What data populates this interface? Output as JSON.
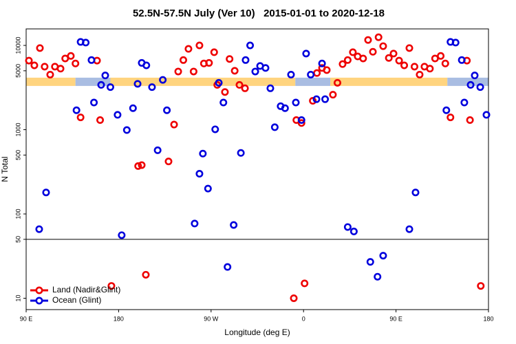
{
  "chart_data": {
    "type": "scatter",
    "title": "52.5N-57.5N July (Ver 10)   2015-01-01 to 2020-12-18",
    "xlabel": "Longitude (deg E)",
    "ylabel": "N Total",
    "xlim": [
      90,
      540
    ],
    "xticks": [
      {
        "value": 90,
        "label": "90 E"
      },
      {
        "value": 180,
        "label": "180"
      },
      {
        "value": 270,
        "label": "90 W"
      },
      {
        "value": 360,
        "label": "0"
      },
      {
        "value": 450,
        "label": "90 E"
      },
      {
        "value": 540,
        "label": "180"
      }
    ],
    "ylim": [
      7.33,
      15700
    ],
    "yscale": "log",
    "yticks": [
      10,
      50,
      100,
      500,
      1000,
      5000,
      10000
    ],
    "panel_split": 50,
    "legend": "lower left",
    "band": {
      "value": 3700,
      "segments": [
        {
          "from": 90,
          "to": 138,
          "color": "#ffd47f"
        },
        {
          "from": 138,
          "to": 172,
          "color": "#a9bde2"
        },
        {
          "from": 172,
          "to": 352,
          "color": "#ffd47f"
        },
        {
          "from": 352,
          "to": 386,
          "color": "#a9bde2"
        },
        {
          "from": 386,
          "to": 500,
          "color": "#ffd47f"
        },
        {
          "from": 500,
          "to": 540,
          "color": "#a9bde2"
        }
      ]
    },
    "series": [
      {
        "name": "Land (Nadir&Glint)",
        "color": "#ee0000",
        "x": [
          92.7,
          98,
          103.4,
          108,
          113.4,
          118,
          123.5,
          128,
          133.5,
          138,
          143,
          159,
          162,
          199,
          202.5,
          228.6,
          234,
          238,
          243,
          248,
          253,
          258.7,
          263,
          268,
          273,
          276,
          283.5,
          288,
          293,
          297.6,
          303,
          353,
          358,
          369,
          373,
          378,
          382.6,
          388.6,
          393,
          398,
          403,
          408,
          412.7,
          418,
          422.8,
          427.5,
          433,
          437.5,
          443,
          447.6,
          453,
          458,
          463,
          468,
          473,
          477.7,
          483,
          488,
          493.5,
          498,
          503,
          519,
          522,
          173,
          206.5,
          350.5,
          361,
          532.5
        ],
        "values": [
          6600,
          5800,
          9300,
          5600,
          4500,
          5600,
          5300,
          7000,
          7500,
          6100,
          1400,
          6600,
          1300,
          370,
          380,
          420,
          1150,
          4900,
          6700,
          9100,
          4900,
          10000,
          6100,
          6200,
          8300,
          3400,
          2800,
          6900,
          5000,
          3400,
          3100,
          1300,
          1200,
          2200,
          4700,
          5400,
          5100,
          2600,
          3600,
          6000,
          6700,
          8300,
          7400,
          7000,
          11600,
          8400,
          12500,
          9800,
          7100,
          8000,
          6600,
          5800,
          9300,
          5600,
          4500,
          5600,
          5300,
          7000,
          7500,
          6100,
          1400,
          6600,
          1300,
          14,
          19,
          10,
          15,
          14
        ]
      },
      {
        "name": "Ocean (Glint)",
        "color": "#0000dd",
        "x": [
          102.7,
          109.4,
          139,
          143,
          148,
          153.6,
          156,
          163,
          167,
          172,
          179,
          183,
          188,
          194,
          198.5,
          202.5,
          207,
          212.5,
          218,
          223,
          227,
          254,
          258.7,
          262,
          267,
          274,
          277.5,
          282,
          292,
          299,
          303.6,
          308,
          313,
          317.7,
          323,
          327.7,
          332,
          337.7,
          342,
          347.8,
          352.5,
          358,
          362.5,
          367,
          372.6,
          378,
          381,
          403,
          409,
          463,
          469,
          499,
          503,
          508,
          514,
          516.5,
          522.6,
          526.6,
          532,
          538,
          286,
          425,
          432,
          437.5
        ],
        "values": [
          66,
          180,
          1700,
          11000,
          10800,
          6700,
          2100,
          3400,
          4400,
          3200,
          1500,
          56,
          990,
          1800,
          3500,
          6200,
          5800,
          3200,
          570,
          3900,
          1700,
          77,
          300,
          520,
          200,
          1010,
          3600,
          2100,
          74,
          530,
          6700,
          10000,
          4900,
          5700,
          5400,
          3100,
          1070,
          1900,
          1800,
          4500,
          2100,
          1300,
          8000,
          4500,
          2300,
          6100,
          2300,
          70,
          62,
          66,
          180,
          1700,
          11000,
          10800,
          6700,
          2100,
          3400,
          4400,
          3200,
          1500,
          23.5,
          27,
          18,
          32
        ]
      }
    ]
  }
}
